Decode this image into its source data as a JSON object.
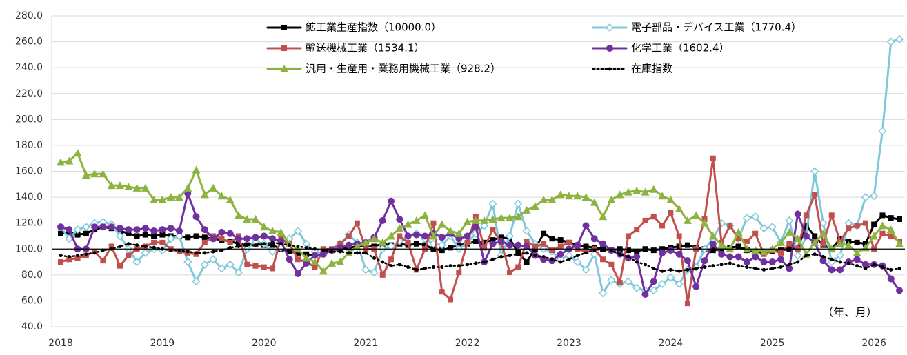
{
  "chart_data": {
    "type": "line",
    "annotation": "（年、月）",
    "categories": [
      "2018",
      null,
      null,
      null,
      null,
      null,
      null,
      null,
      null,
      null,
      null,
      null,
      "2019",
      null,
      null,
      null,
      null,
      null,
      null,
      null,
      null,
      null,
      null,
      null,
      "2020",
      null,
      null,
      null,
      null,
      null,
      null,
      null,
      null,
      null,
      null,
      null,
      "2021",
      null,
      null,
      null,
      null,
      null,
      null,
      null,
      null,
      null,
      null,
      null,
      "2022",
      null,
      null,
      null,
      null,
      null,
      null,
      null,
      null,
      null,
      null,
      null,
      "2023",
      null,
      null,
      null,
      null,
      null,
      null,
      null,
      null,
      null,
      null,
      null,
      "2024",
      null,
      null,
      null,
      null,
      null,
      null,
      null,
      null,
      null,
      null,
      null,
      "2025",
      null,
      null,
      null,
      null,
      null,
      null,
      null,
      null,
      null,
      null,
      null,
      "2026",
      null,
      null,
      null
    ],
    "ylim": [
      40,
      280
    ],
    "yticks": [
      {
        "value": 40,
        "label": "40.0"
      },
      {
        "value": 60,
        "label": "60.0"
      },
      {
        "value": 80,
        "label": "80.0"
      },
      {
        "value": 100,
        "label": "100.0"
      },
      {
        "value": 120,
        "label": "120.0"
      },
      {
        "value": 140,
        "label": "140.0"
      },
      {
        "value": 160,
        "label": "160.0"
      },
      {
        "value": 180,
        "label": "180.0"
      },
      {
        "value": 200,
        "label": "200.0"
      },
      {
        "value": 220,
        "label": "220.0"
      },
      {
        "value": 240,
        "label": "240.0"
      },
      {
        "value": 260,
        "label": "260.0"
      },
      {
        "value": 280,
        "label": "280.0"
      }
    ],
    "grid": true,
    "x_axis_crosses": 100,
    "series": [
      {
        "name": "鉱工業生産指数（10000.0）",
        "color": "#000000",
        "marker": "square",
        "values": [
          112,
          113,
          111,
          112,
          115,
          117,
          116,
          114,
          112,
          110,
          111,
          110,
          111,
          110,
          110,
          109,
          110,
          109,
          108,
          107,
          106,
          104,
          103,
          104,
          103,
          103,
          100,
          98,
          97,
          96,
          95,
          97,
          99,
          100,
          101,
          102,
          103,
          102,
          104,
          103,
          104,
          103,
          104,
          103,
          100,
          99,
          101,
          103,
          104,
          106,
          105,
          107,
          109,
          108,
          97,
          90,
          100,
          112,
          108,
          107,
          105,
          103,
          102,
          101,
          100,
          99,
          100,
          99,
          98,
          100,
          99,
          100,
          101,
          102,
          103,
          101,
          100,
          99,
          100,
          101,
          102,
          99,
          98,
          97,
          98,
          99,
          100,
          101,
          118,
          110,
          103,
          100,
          108,
          106,
          105,
          104,
          119,
          126,
          124,
          123
        ]
      },
      {
        "name": "電子部品・デバイス工業（1770.4）",
        "color": "#7ec8dc",
        "marker": "diamond",
        "values": [
          117,
          108,
          115,
          117,
          120,
          121,
          119,
          110,
          100,
          90,
          97,
          100,
          99,
          108,
          110,
          90,
          75,
          88,
          92,
          85,
          88,
          82,
          100,
          106,
          104,
          98,
          101,
          108,
          114,
          104,
          98,
          96,
          99,
          104,
          111,
          105,
          84,
          82,
          100,
          102,
          106,
          110,
          112,
          108,
          104,
          103,
          110,
          100,
          105,
          112,
          118,
          135,
          95,
          110,
          135,
          114,
          104,
          100,
          98,
          92,
          95,
          90,
          84,
          96,
          66,
          76,
          73,
          75,
          70,
          68,
          68,
          73,
          78,
          73,
          84,
          86,
          100,
          108,
          120,
          118,
          108,
          124,
          125,
          116,
          117,
          105,
          122,
          95,
          110,
          160,
          120,
          90,
          95,
          120,
          118,
          140,
          141,
          191,
          260,
          262
        ]
      },
      {
        "name": "輸送機械工業（1534.1）",
        "color": "#c0504d",
        "marker": "square",
        "values": [
          90,
          92,
          93,
          95,
          98,
          91,
          102,
          87,
          95,
          100,
          102,
          105,
          105,
          100,
          98,
          97,
          96,
          105,
          110,
          108,
          105,
          110,
          88,
          87,
          86,
          85,
          108,
          104,
          92,
          90,
          86,
          100,
          100,
          104,
          110,
          120,
          100,
          100,
          80,
          92,
          110,
          105,
          84,
          100,
          120,
          67,
          61,
          82,
          105,
          125,
          101,
          115,
          105,
          82,
          86,
          106,
          102,
          104,
          99,
          102,
          105,
          100,
          98,
          100,
          92,
          88,
          74,
          110,
          115,
          122,
          125,
          118,
          128,
          110,
          58,
          100,
          123,
          170,
          105,
          118,
          108,
          106,
          112,
          96,
          99,
          97,
          104,
          100,
          126,
          142,
          104,
          126,
          106,
          116,
          118,
          120,
          100,
          112,
          110,
          106
        ]
      },
      {
        "name": "化学工業（1602.4）",
        "color": "#7030a0",
        "marker": "circle",
        "values": [
          117,
          115,
          100,
          100,
          117,
          117,
          117,
          116,
          115,
          115,
          116,
          114,
          115,
          116,
          114,
          143,
          125,
          115,
          108,
          113,
          112,
          108,
          108,
          109,
          110,
          108,
          106,
          92,
          81,
          89,
          95,
          96,
          99,
          101,
          103,
          104,
          105,
          109,
          122,
          137,
          123,
          110,
          111,
          110,
          112,
          109,
          112,
          108,
          110,
          117,
          90,
          104,
          106,
          103,
          103,
          102,
          95,
          92,
          91,
          96,
          100,
          103,
          118,
          108,
          104,
          99,
          96,
          93,
          94,
          65,
          75,
          97,
          99,
          96,
          91,
          71,
          91,
          104,
          96,
          94,
          94,
          90,
          94,
          90,
          90,
          92,
          85,
          127,
          110,
          105,
          91,
          84,
          84,
          90,
          92,
          88,
          88,
          87,
          77,
          68
        ]
      },
      {
        "name": "汎用・生産用・業務用機械工業（928.2）",
        "color": "#8db33f",
        "marker": "triangle",
        "values": [
          167,
          168,
          174,
          157,
          158,
          158,
          149,
          149,
          148,
          147,
          147,
          138,
          138,
          140,
          140,
          147,
          161,
          142,
          147,
          141,
          138,
          126,
          123,
          123,
          117,
          114,
          113,
          104,
          100,
          93,
          90,
          83,
          89,
          90,
          97,
          102,
          105,
          108,
          105,
          110,
          116,
          119,
          122,
          126,
          110,
          119,
          114,
          112,
          121,
          122,
          122,
          123,
          124,
          124,
          125,
          130,
          133,
          138,
          138,
          142,
          141,
          141,
          140,
          136,
          125,
          138,
          142,
          144,
          145,
          144,
          146,
          141,
          138,
          131,
          122,
          126,
          120,
          110,
          103,
          100,
          113,
          100,
          99,
          98,
          100,
          105,
          113,
          108,
          96,
          105,
          112,
          100,
          104,
          103,
          97,
          101,
          110,
          118,
          115,
          104
        ]
      },
      {
        "name": "在庫指数",
        "color": "#000000",
        "marker": "dot",
        "dash": true,
        "values": [
          95,
          94,
          95,
          96,
          97,
          99,
          100,
          102,
          104,
          103,
          102,
          101,
          100,
          99,
          99,
          98,
          97,
          97,
          98,
          99,
          101,
          102,
          103,
          103,
          104,
          105,
          104,
          103,
          102,
          101,
          100,
          99,
          98,
          98,
          97,
          97,
          97,
          93,
          90,
          87,
          88,
          86,
          84,
          85,
          86,
          86,
          87,
          87,
          88,
          89,
          90,
          92,
          94,
          95,
          96,
          97,
          95,
          94,
          92,
          90,
          92,
          95,
          97,
          99,
          100,
          99,
          96,
          94,
          90,
          88,
          85,
          83,
          84,
          83,
          84,
          85,
          86,
          87,
          88,
          89,
          87,
          86,
          85,
          84,
          85,
          86,
          88,
          90,
          95,
          96,
          94,
          92,
          90,
          89,
          87,
          85,
          88,
          86,
          84,
          85
        ]
      }
    ]
  }
}
